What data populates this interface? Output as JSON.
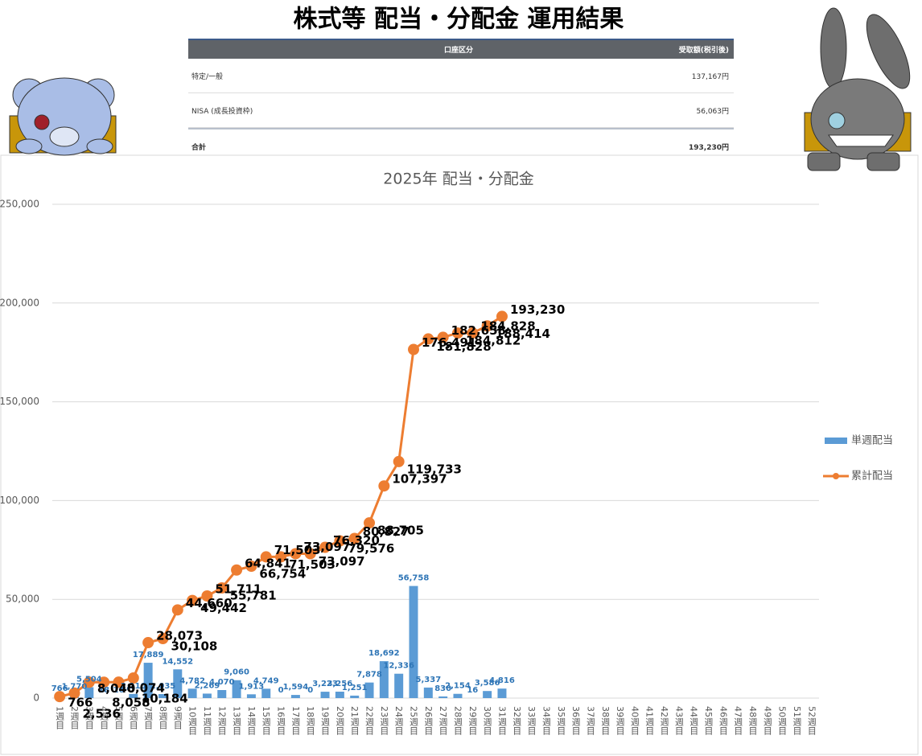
{
  "header": {
    "title": "株式等 配当・分配金 運用結果"
  },
  "table": {
    "columns": [
      "口座区分",
      "受取額(税引後)"
    ],
    "rows": [
      [
        "特定/一般",
        "137,167円"
      ],
      [
        "NISA (成長投資枠)",
        "56,063円"
      ],
      [
        "合計",
        "193,230円"
      ]
    ]
  },
  "chart_data": {
    "type": "bar-line",
    "title": "2025年 配当・分配金",
    "categories": [
      "1週目",
      "2週目",
      "3週目",
      "4週目",
      "5週目",
      "6週目",
      "7週目",
      "8週目",
      "9週目",
      "10週目",
      "11週目",
      "12週目",
      "13週目",
      "14週目",
      "15週目",
      "16週目",
      "17週目",
      "18週目",
      "19週目",
      "20週目",
      "21週目",
      "22週目",
      "23週目",
      "24週目",
      "25週目",
      "26週目",
      "27週目",
      "28週目",
      "29週目",
      "30週目",
      "31週目",
      "32週目",
      "33週目",
      "34週目",
      "35週目",
      "36週目",
      "37週目",
      "38週目",
      "39週目",
      "40週目",
      "41週目",
      "42週目",
      "43週目",
      "44週目",
      "45週目",
      "46週目",
      "47週目",
      "48週目",
      "49週目",
      "50週目",
      "51週目",
      "52週目"
    ],
    "series": [
      {
        "name": "単週配当",
        "type": "bar",
        "color": "#5b9bd5",
        "values": [
          766,
          1770,
          5504,
          18,
          16,
          2110,
          17889,
          2035,
          14552,
          4782,
          2269,
          4070,
          9060,
          1913,
          4749,
          0,
          1594,
          0,
          3223,
          3256,
          1251,
          7878,
          18692,
          12336,
          56758,
          5337,
          830,
          2154,
          16,
          3586,
          4816,
          null,
          null,
          null,
          null,
          null,
          null,
          null,
          null,
          null,
          null,
          null,
          null,
          null,
          null,
          null,
          null,
          null,
          null,
          null,
          null,
          null
        ],
        "value_labels": [
          "766",
          "1,770",
          "5,504",
          "18",
          "16",
          "2,110",
          "17,889",
          "2,035",
          "14,552",
          "4,782",
          "2,269",
          "4,070",
          "9,060",
          "1,913",
          "4,749",
          "0",
          "1,594",
          "0",
          "3,223",
          "3,256",
          "1,251",
          "7,878",
          "18,692",
          "12,336",
          "56,758",
          "5,337",
          "830",
          "2,154",
          "16",
          "3,586",
          "4,816",
          null,
          null,
          null,
          null,
          null,
          null,
          null,
          null,
          null,
          null,
          null,
          null,
          null,
          null,
          null,
          null,
          null,
          null,
          null,
          null,
          null
        ]
      },
      {
        "name": "累計配当",
        "type": "line",
        "color": "#ed7d31",
        "values": [
          766,
          2536,
          8040,
          8058,
          8074,
          10184,
          28073,
          30108,
          44660,
          49442,
          51711,
          55781,
          64841,
          66754,
          71503,
          71503,
          73097,
          73097,
          76320,
          79576,
          80827,
          88705,
          107397,
          119733,
          176491,
          181828,
          182658,
          184812,
          184828,
          188414,
          193230,
          null,
          null,
          null,
          null,
          null,
          null,
          null,
          null,
          null,
          null,
          null,
          null,
          null,
          null,
          null,
          null,
          null,
          null,
          null,
          null,
          null
        ],
        "value_labels": [
          "766",
          "2,536",
          "8,040",
          "8,058",
          "8,074",
          "10,184",
          "28,073",
          "30,108",
          "44,660",
          "49,442",
          "51,711",
          "55,781",
          "64,841",
          "66,754",
          "71,503",
          "71,503",
          "73,097",
          "73,097",
          "76,320",
          "79,576",
          "80,827",
          "88,705",
          "107,397",
          "119,733",
          "176,491",
          "181,828",
          "182,658",
          "184,812",
          "184,828",
          "188,414",
          "193,230",
          null,
          null,
          null,
          null,
          null,
          null,
          null,
          null,
          null,
          null,
          null,
          null,
          null,
          null,
          null,
          null,
          null,
          null,
          null,
          null,
          null
        ]
      }
    ],
    "ylim": [
      0,
      250000
    ],
    "yticks": [
      0,
      {
        "value": 50000,
        "label": "50,000"
      },
      {
        "value": 100000,
        "label": "100,000"
      },
      {
        "value": 150000,
        "label": "150,000"
      },
      {
        "value": 200000,
        "label": "200,000"
      },
      {
        "value": 250000,
        "label": "250,000"
      }
    ],
    "grid": true,
    "legend": "right"
  }
}
